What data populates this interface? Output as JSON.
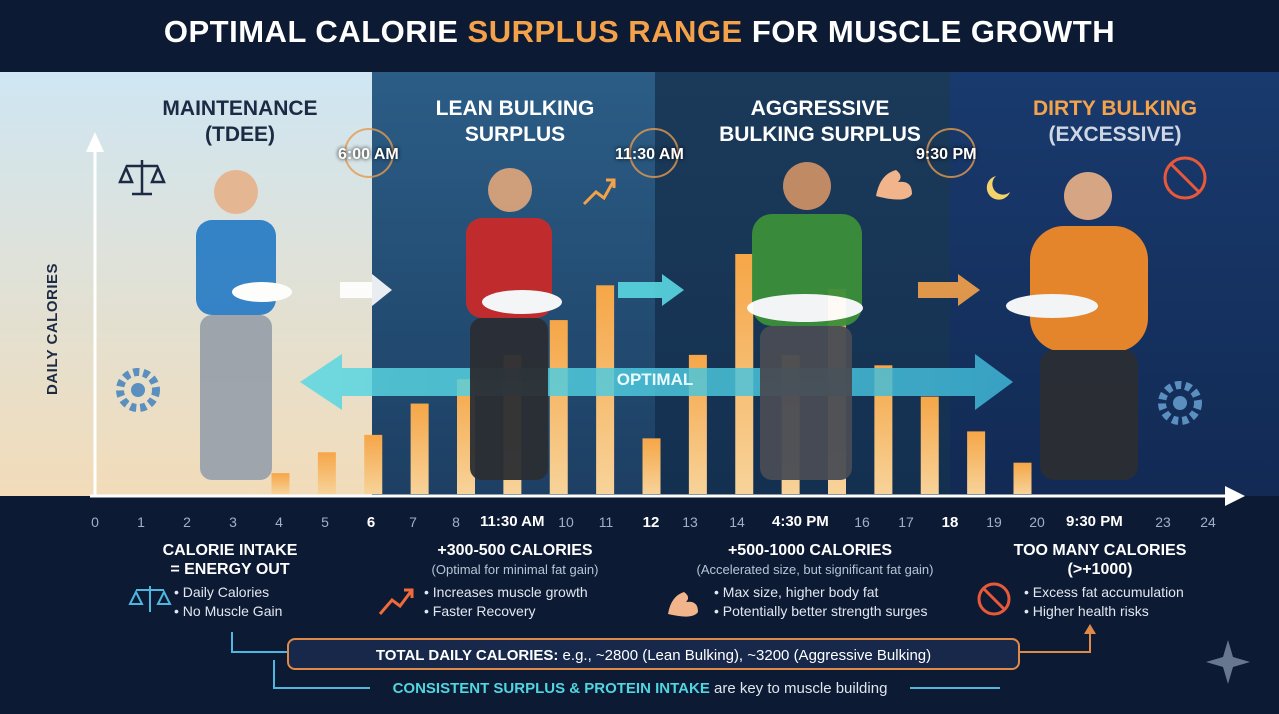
{
  "title": {
    "part1": "OPTIMAL CALORIE ",
    "part2": "SURPLUS RANGE",
    "part3": " FOR MUSCLE GROWTH"
  },
  "y_axis_label": "DAILY CALORIES",
  "phases": [
    {
      "title": "MAINTENANCE",
      "subtitle": "(TDEE)"
    },
    {
      "title": "LEAN BULKING",
      "subtitle": "SURPLUS"
    },
    {
      "title": "AGGRESSIVE",
      "subtitle": "BULKING SURPLUS"
    },
    {
      "title": "DIRTY BULKING",
      "subtitle": "(EXCESSIVE)"
    }
  ],
  "clock_times": [
    "6:00 AM",
    "11:30 AM",
    "9:30 PM"
  ],
  "optimal_label": "OPTIMAL",
  "x_ticks": [
    "0",
    "1",
    "2",
    "3",
    "4",
    "5",
    "6",
    "7",
    "8",
    "10",
    "11",
    "12",
    "13",
    "14",
    "16",
    "17",
    "18",
    "19",
    "20",
    "23",
    "24"
  ],
  "time_labels": [
    "11:30 AM",
    "4:30 PM",
    "9:30 PM"
  ],
  "sections": [
    {
      "head1": "CALORIE INTAKE",
      "head2": "= ENERGY OUT",
      "sub": "",
      "bullets": [
        "• Daily Calories",
        "• No Muscle Gain"
      ]
    },
    {
      "head1": "+300-500 CALORIES",
      "head2": "",
      "sub": "(Optimal for minimal fat gain)",
      "bullets": [
        "• Increases muscle growth",
        "• Faster Recovery"
      ]
    },
    {
      "head1": "+500-1000 CALORIES",
      "head2": "",
      "sub": "(Accelerated size, but significant fat gain)",
      "bullets": [
        "• Max size, higher body fat",
        "• Potentially better strength surges"
      ]
    },
    {
      "head1": "TOO MANY CALORIES",
      "head2": "(>+1000)",
      "sub": "",
      "bullets": [
        "• Excess fat accumulation",
        "• Higher health risks"
      ]
    }
  ],
  "total": {
    "label": "TOTAL DAILY CALORIES:",
    "text": " e.g., ~2800 (Lean Bulking), ~3200 (Aggressive Bulking)"
  },
  "consistent": {
    "highlight": "CONSISTENT SURPLUS & PROTEIN INTAKE",
    "text": " are key to muscle building"
  },
  "chart_data": {
    "type": "bar",
    "x": [
      4,
      5,
      6,
      7,
      8,
      9,
      10,
      11,
      12,
      13,
      14,
      15,
      16,
      17,
      18,
      19,
      20
    ],
    "values": [
      0.06,
      0.12,
      0.17,
      0.26,
      0.33,
      0.4,
      0.5,
      0.6,
      0.16,
      0.4,
      0.69,
      0.4,
      0.59,
      0.37,
      0.28,
      0.18,
      0.09
    ],
    "xlabel": "",
    "ylabel": "DAILY CALORIES"
  },
  "colors": {
    "accent": "#f4a24a",
    "optimal": "#4fd6e0",
    "bar_top": "#f6a647",
    "bar_bottom": "#f7d39a"
  },
  "icons": [
    "scale-icon",
    "trend-chart-icon",
    "bicep-icon",
    "no-junk-food-icon",
    "gear-icon",
    "moon-icon",
    "sparkle-icon"
  ]
}
